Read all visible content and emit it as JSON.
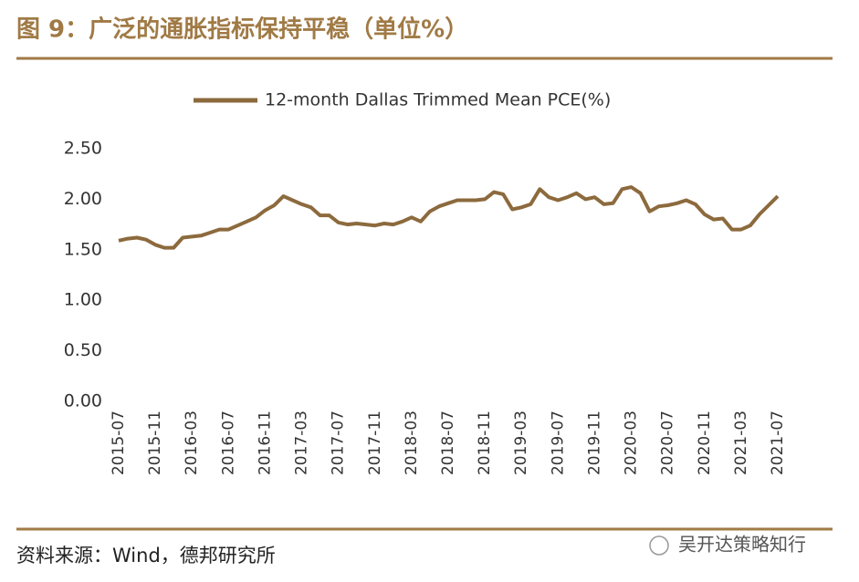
{
  "chart_data": {
    "type": "line",
    "title": "图 9：广泛的通胀指标保持平稳（单位%）",
    "categories": [
      "2015-07",
      null,
      null,
      null,
      "2015-11",
      null,
      null,
      null,
      "2016-03",
      null,
      null,
      null,
      "2016-07",
      null,
      null,
      null,
      "2016-11",
      null,
      null,
      null,
      "2017-03",
      null,
      null,
      null,
      "2017-07",
      null,
      null,
      null,
      "2017-11",
      null,
      null,
      null,
      "2018-03",
      null,
      null,
      null,
      "2018-07",
      null,
      null,
      null,
      "2018-11",
      null,
      null,
      null,
      "2019-03",
      null,
      null,
      null,
      "2019-07",
      null,
      null,
      null,
      "2019-11",
      null,
      null,
      null,
      "2020-03",
      null,
      null,
      null,
      "2020-07",
      null,
      null,
      null,
      "2020-11",
      null,
      null,
      null,
      "2021-03",
      null,
      null,
      null,
      "2021-07"
    ],
    "series": [
      {
        "name": "12-month Dallas Trimmed Mean PCE(%)",
        "color": "#8c6a3d",
        "values": [
          1.59,
          1.61,
          1.62,
          1.6,
          1.55,
          1.52,
          1.52,
          1.62,
          1.63,
          1.64,
          1.67,
          1.7,
          1.7,
          1.74,
          1.78,
          1.82,
          1.89,
          1.94,
          2.03,
          1.99,
          1.95,
          1.92,
          1.84,
          1.84,
          1.77,
          1.75,
          1.76,
          1.75,
          1.74,
          1.76,
          1.75,
          1.78,
          1.82,
          1.78,
          1.88,
          1.93,
          1.96,
          1.99,
          1.99,
          1.99,
          2.0,
          2.07,
          2.05,
          1.9,
          1.92,
          1.95,
          2.1,
          2.02,
          1.99,
          2.02,
          2.06,
          2.0,
          2.02,
          1.95,
          1.96,
          2.1,
          2.12,
          2.06,
          1.88,
          1.93,
          1.94,
          1.96,
          1.99,
          1.95,
          1.85,
          1.8,
          1.81,
          1.7,
          1.7,
          1.74,
          1.85,
          1.94,
          2.03
        ]
      }
    ],
    "ylim": [
      0,
      2.5
    ],
    "yticks": [
      {
        "value": 0,
        "label": "0.00"
      },
      {
        "value": 0.5,
        "label": "0.50"
      },
      {
        "value": 1,
        "label": "1.00"
      },
      {
        "value": 1.5,
        "label": "1.50"
      },
      {
        "value": 2,
        "label": "2.00"
      },
      {
        "value": 2.5,
        "label": "2.50"
      }
    ],
    "grid": false,
    "legend": "top"
  },
  "source": "资料来源：Wind，德邦研究所",
  "watermark": "吴开达策略知行"
}
